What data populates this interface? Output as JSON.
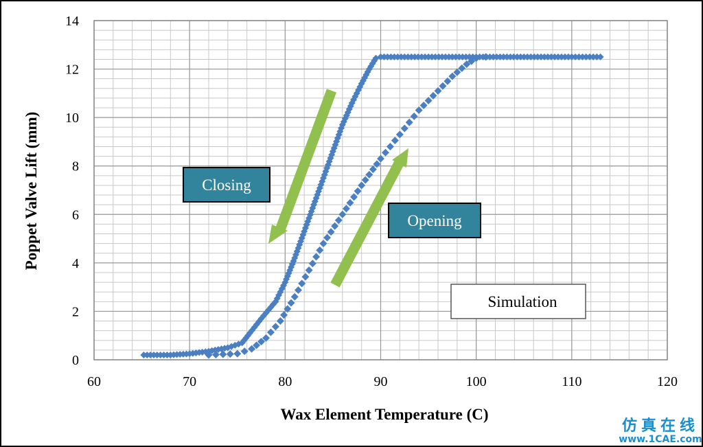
{
  "chart_data": {
    "type": "scatter",
    "xlabel": "Wax Element Temperature  (C)",
    "ylabel": "Poppet Valve Lift (mm)",
    "xlim": [
      60,
      120
    ],
    "ylim": [
      0,
      14
    ],
    "x_ticks": [
      60,
      70,
      80,
      90,
      100,
      110,
      120
    ],
    "y_ticks": [
      0,
      2,
      4,
      6,
      8,
      10,
      12,
      14
    ],
    "grid": true,
    "minor_grid": true,
    "series": [
      {
        "key": "closing",
        "x": [
          65.2,
          68,
          70,
          72,
          74,
          75.5,
          76.3,
          77.5,
          79,
          80,
          81,
          82,
          83,
          84,
          85,
          86,
          87,
          88,
          88.8,
          89.5,
          90,
          95,
          100,
          105,
          110,
          113
        ],
        "y": [
          0.2,
          0.2,
          0.25,
          0.35,
          0.5,
          0.7,
          1.1,
          1.7,
          2.4,
          3.2,
          4.2,
          5.3,
          6.4,
          7.5,
          8.6,
          9.7,
          10.6,
          11.4,
          12.0,
          12.45,
          12.5,
          12.5,
          12.5,
          12.5,
          12.5,
          12.5
        ],
        "color": "#4a7fc1"
      },
      {
        "key": "opening",
        "x": [
          72,
          75,
          76.5,
          78,
          79.5,
          81,
          82.5,
          84,
          86,
          88,
          90,
          92,
          94,
          96,
          97.5,
          99,
          100,
          101
        ],
        "y": [
          0.2,
          0.25,
          0.45,
          0.9,
          1.6,
          2.6,
          3.7,
          4.8,
          6.0,
          7.2,
          8.3,
          9.3,
          10.3,
          11.1,
          11.7,
          12.2,
          12.45,
          12.5
        ],
        "color": "#4a7fc1"
      }
    ]
  },
  "annotations": {
    "closing": "Closing",
    "opening": "Opening",
    "simulation": "Simulation"
  },
  "colors": {
    "series": "#4a7fc1",
    "arrow": "#92c04f",
    "label_box_fill": "#31849b",
    "grid": "#b7b7b7"
  },
  "watermark": {
    "line1": "仿真在线",
    "line2": "www.1CAE.com"
  }
}
